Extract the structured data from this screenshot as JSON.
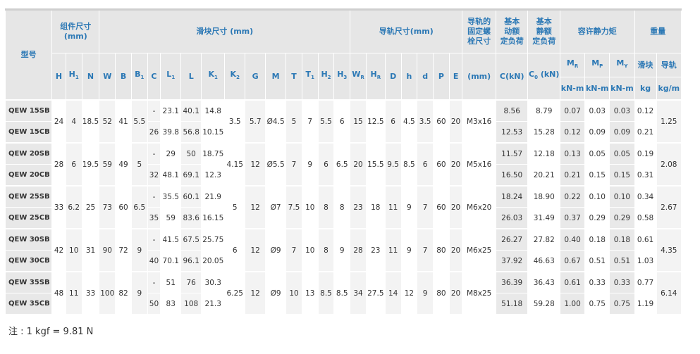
{
  "header": {
    "model": "型号",
    "groups": [
      {
        "lines": [
          "组件尺寸",
          "(mm)"
        ]
      },
      {
        "lines": [
          "滑块尺寸 (mm)"
        ]
      },
      {
        "lines": [
          "导轨尺寸(mm)"
        ]
      },
      {
        "lines": [
          "导轨的",
          "固定螺",
          "栓尺寸"
        ]
      },
      {
        "lines": [
          "基本",
          "动额",
          "定负荷"
        ]
      },
      {
        "lines": [
          "基本",
          "静额",
          "定负荷"
        ]
      },
      {
        "lines": [
          "容许静力矩"
        ]
      },
      {
        "lines": [
          "重量"
        ]
      }
    ],
    "columns": [
      {
        "t": "H"
      },
      {
        "t": "H",
        "sub": "1"
      },
      {
        "t": "N"
      },
      {
        "t": "W"
      },
      {
        "t": "B"
      },
      {
        "t": "B",
        "sub": "1"
      },
      {
        "t": "C"
      },
      {
        "t": "L",
        "sub": "1"
      },
      {
        "t": "L"
      },
      {
        "t": "K",
        "sub": "1"
      },
      {
        "t": "K",
        "sub": "2"
      },
      {
        "t": "G"
      },
      {
        "t": "M"
      },
      {
        "t": "T"
      },
      {
        "t": "T",
        "sub": "1"
      },
      {
        "t": "H",
        "sub": "2"
      },
      {
        "t": "H",
        "sub": "3"
      },
      {
        "t": "W",
        "sub": "R"
      },
      {
        "t": "H",
        "sub": "R"
      },
      {
        "t": "D"
      },
      {
        "t": "h"
      },
      {
        "t": "d"
      },
      {
        "t": "P"
      },
      {
        "t": "E"
      }
    ],
    "bolt_unit": {
      "t": "(mm)"
    },
    "dyn_unit": {
      "t": "C",
      "suffix": "(kN)"
    },
    "stat_unit": {
      "t": "C",
      "sub": "0",
      "suffix": " (kN)"
    },
    "moments": [
      {
        "t": "M",
        "sub": "R"
      },
      {
        "t": "M",
        "sub": "P"
      },
      {
        "t": "M",
        "sub": "Y"
      }
    ],
    "moment_units": [
      "kN-m",
      "kN-m",
      "kN-m"
    ],
    "weight_subs": [
      "滑块",
      "导轨"
    ],
    "weight_units": [
      "kg",
      "kg/m"
    ]
  },
  "groups": [
    {
      "shared_a": [
        "24",
        "4",
        "18.5",
        "52",
        "41",
        "5.5"
      ],
      "shared_b": [
        "3.5",
        "5.7",
        "Ø4.5",
        "5",
        "7",
        "5.5",
        "6",
        "15",
        "12.5",
        "6",
        "4.5",
        "3.5",
        "60",
        "20",
        "M3x16"
      ],
      "rail_weight": "1.25",
      "rows": [
        {
          "model": "QEW 15SB",
          "dims": [
            "-",
            "23.1",
            "40.1",
            "14.8"
          ],
          "ratings": [
            "8.56",
            "8.79",
            "0.07",
            "0.03",
            "0.03",
            "0.12"
          ]
        },
        {
          "model": "QEW 15CB",
          "dims": [
            "26",
            "39.8",
            "56.8",
            "10.15"
          ],
          "ratings": [
            "12.53",
            "15.28",
            "0.12",
            "0.09",
            "0.09",
            "0.21"
          ]
        }
      ]
    },
    {
      "shared_a": [
        "28",
        "6",
        "19.5",
        "59",
        "49",
        "5"
      ],
      "shared_b": [
        "4.15",
        "12",
        "Ø5.5",
        "7",
        "9",
        "6",
        "6.5",
        "20",
        "15.5",
        "9.5",
        "8.5",
        "6",
        "60",
        "20",
        "M5x16"
      ],
      "rail_weight": "2.08",
      "rows": [
        {
          "model": "QEW 20SB",
          "dims": [
            "-",
            "29",
            "50",
            "18.75"
          ],
          "ratings": [
            "11.57",
            "12.18",
            "0.13",
            "0.05",
            "0.05",
            "0.19"
          ]
        },
        {
          "model": "QEW 20CB",
          "dims": [
            "32",
            "48.1",
            "69.1",
            "12.3"
          ],
          "ratings": [
            "16.50",
            "20.21",
            "0.21",
            "0.15",
            "0.15",
            "0.31"
          ]
        }
      ]
    },
    {
      "shared_a": [
        "33",
        "6.2",
        "25",
        "73",
        "60",
        "6.5"
      ],
      "shared_b": [
        "5",
        "12",
        "Ø7",
        "7.5",
        "10",
        "8",
        "8",
        "23",
        "18",
        "11",
        "9",
        "7",
        "60",
        "20",
        "M6x20"
      ],
      "rail_weight": "2.67",
      "rows": [
        {
          "model": "QEW 25SB",
          "dims": [
            "-",
            "35.5",
            "60.1",
            "21.9"
          ],
          "ratings": [
            "18.24",
            "18.90",
            "0.22",
            "0.10",
            "0.10",
            "0.34"
          ]
        },
        {
          "model": "QEW 25CB",
          "dims": [
            "35",
            "59",
            "83.6",
            "16.15"
          ],
          "ratings": [
            "26.03",
            "31.49",
            "0.37",
            "0.29",
            "0.29",
            "0.58"
          ]
        }
      ]
    },
    {
      "shared_a": [
        "42",
        "10",
        "31",
        "90",
        "72",
        "9"
      ],
      "shared_b": [
        "6",
        "12",
        "Ø9",
        "7",
        "10",
        "8",
        "9",
        "28",
        "23",
        "11",
        "9",
        "7",
        "80",
        "20",
        "M6x25"
      ],
      "rail_weight": "4.35",
      "rows": [
        {
          "model": "QEW 30SB",
          "dims": [
            "-",
            "41.5",
            "67.5",
            "25.75"
          ],
          "ratings": [
            "26.27",
            "27.82",
            "0.40",
            "0.18",
            "0.18",
            "0.61"
          ]
        },
        {
          "model": "QEW 30CB",
          "dims": [
            "40",
            "70.1",
            "96.1",
            "20.05"
          ],
          "ratings": [
            "37.92",
            "46.63",
            "0.67",
            "0.51",
            "0.51",
            "1.03"
          ]
        }
      ]
    },
    {
      "shared_a": [
        "48",
        "11",
        "33",
        "100",
        "82",
        "9"
      ],
      "shared_b": [
        "6.25",
        "12",
        "Ø9",
        "10",
        "13",
        "8.5",
        "8.5",
        "34",
        "27.5",
        "14",
        "12",
        "9",
        "80",
        "20",
        "M8x25"
      ],
      "rail_weight": "6.14",
      "rows": [
        {
          "model": "QEW 35SB",
          "dims": [
            "-",
            "51",
            "76",
            "30.3"
          ],
          "ratings": [
            "36.39",
            "36.43",
            "0.61",
            "0.33",
            "0.33",
            "0.77"
          ]
        },
        {
          "model": "QEW 35CB",
          "dims": [
            "50",
            "83",
            "108",
            "21.3"
          ],
          "ratings": [
            "51.18",
            "59.28",
            "1.00",
            "0.75",
            "0.75",
            "1.19"
          ]
        }
      ]
    }
  ],
  "note": "注 : 1 kgf = 9.81 N"
}
